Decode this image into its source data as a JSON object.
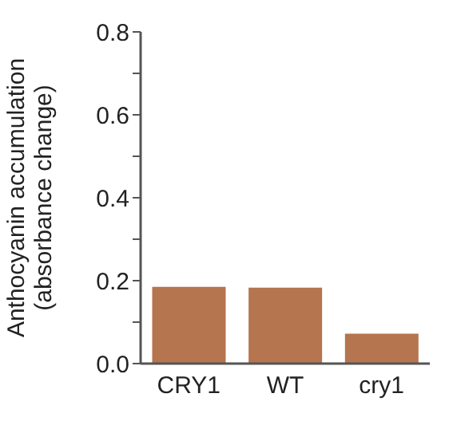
{
  "chart_data": {
    "type": "bar",
    "ylabel": "Anthocyanin accumulation\n(absorbance change)",
    "categories": [
      "CRY1",
      "WT",
      "cry1"
    ],
    "values": [
      0.185,
      0.183,
      0.072
    ],
    "color": "#b5754f",
    "ylim": [
      0,
      0.8
    ],
    "yticks": [
      "0.0",
      {
        "value": 0.1,
        "label": null
      },
      {
        "value": 0.2,
        "label": "0.2"
      },
      {
        "value": 0.3,
        "label": null
      },
      {
        "value": 0.4,
        "label": "0.4"
      },
      {
        "value": 0.5,
        "label": null
      },
      {
        "value": 0.6,
        "label": "0.6"
      },
      {
        "value": 0.7,
        "label": null
      },
      {
        "value": 0.8,
        "label": "0.8"
      }
    ],
    "grid": false,
    "legend": false
  }
}
